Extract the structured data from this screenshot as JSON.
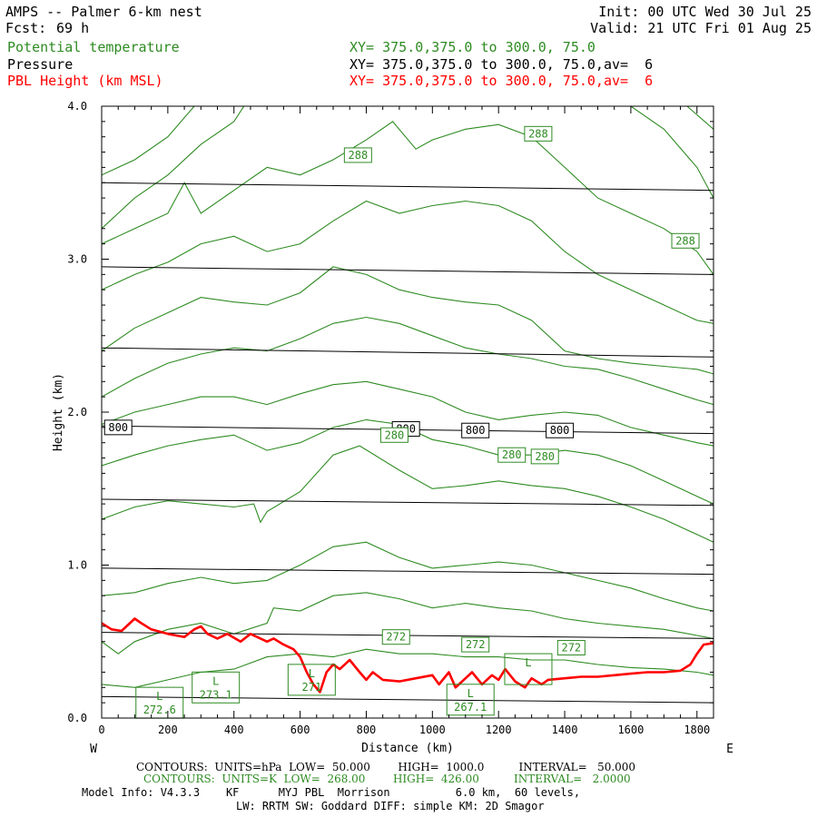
{
  "header": {
    "title": "AMPS -- Palmer 6-km nest",
    "fcst_label": "Fcst:",
    "fcst_value": "69 h",
    "init": "Init: 00 UTC Wed 30 Jul 25",
    "valid": "Valid: 21 UTC Fri 01 Aug 25",
    "fields": [
      {
        "name": "Potential temperature",
        "xy": "XY= 375.0,375.0 to 300.0, 75.0",
        "color": "#2e8b22"
      },
      {
        "name": "Pressure",
        "xy": "XY= 375.0,375.0 to 300.0, 75.0,av=  6",
        "color": "#000000"
      },
      {
        "name": "PBL Height (km MSL)",
        "xy": "XY= 375.0,375.0 to 300.0, 75.0,av=  6",
        "color": "#ff0000"
      }
    ]
  },
  "chart_data": {
    "type": "line",
    "xlabel": "Distance (km)",
    "ylabel": "Height (km)",
    "xlim": [
      0,
      1850
    ],
    "ylim": [
      0,
      4.0
    ],
    "x_ticks": [
      0,
      200,
      400,
      600,
      800,
      1000,
      1200,
      1400,
      1600,
      1800
    ],
    "y_ticks": [
      0.0,
      1.0,
      2.0,
      3.0,
      4.0
    ],
    "y_tick_labels": [
      "0.0",
      "1.0",
      "2.0",
      "3.0",
      "4.0"
    ],
    "left_end_label": "W",
    "right_end_label": "E",
    "grid": false,
    "pressure_isobars": {
      "color": "#000000",
      "lines": [
        {
          "x": [
            0,
            1850
          ],
          "y": [
            3.5,
            3.45
          ]
        },
        {
          "x": [
            0,
            1850
          ],
          "y": [
            2.95,
            2.9
          ]
        },
        {
          "x": [
            0,
            1850
          ],
          "y": [
            2.42,
            2.36
          ]
        },
        {
          "x": [
            0,
            1850
          ],
          "y": [
            1.91,
            1.86
          ]
        },
        {
          "x": [
            0,
            1850
          ],
          "y": [
            1.43,
            1.39
          ]
        },
        {
          "x": [
            0,
            1850
          ],
          "y": [
            0.98,
            0.94
          ]
        },
        {
          "x": [
            0,
            1850
          ],
          "y": [
            0.56,
            0.52
          ]
        },
        {
          "x": [
            0,
            1850
          ],
          "y": [
            0.14,
            0.1
          ]
        }
      ],
      "labels": [
        {
          "text": "800",
          "x": 50,
          "y": 1.9
        },
        {
          "text": "800",
          "x": 920,
          "y": 1.89
        },
        {
          "text": "800",
          "x": 1130,
          "y": 1.88
        },
        {
          "text": "800",
          "x": 1385,
          "y": 1.88
        }
      ]
    },
    "theta_contours": {
      "color": "#2e8b22",
      "lines": [
        {
          "x": [
            0,
            100,
            200,
            300,
            400,
            500,
            600,
            700,
            800,
            900,
            1000,
            1100,
            1200,
            1300,
            1400,
            1500,
            1600,
            1700,
            1800,
            1850
          ],
          "y": [
            0.22,
            0.2,
            0.25,
            0.3,
            0.32,
            0.4,
            0.42,
            0.4,
            0.45,
            0.42,
            0.42,
            0.4,
            0.4,
            0.38,
            0.38,
            0.35,
            0.33,
            0.32,
            0.3,
            0.28
          ]
        },
        {
          "x": [
            0,
            50,
            100,
            200,
            300,
            400,
            500,
            520,
            600,
            700,
            800,
            900,
            1000,
            1100,
            1200,
            1300,
            1400,
            1500,
            1600,
            1700,
            1800,
            1850
          ],
          "y": [
            0.5,
            0.42,
            0.5,
            0.58,
            0.62,
            0.55,
            0.62,
            0.72,
            0.7,
            0.8,
            0.82,
            0.78,
            0.72,
            0.75,
            0.72,
            0.7,
            0.65,
            0.62,
            0.6,
            0.58,
            0.54,
            0.52
          ]
        },
        {
          "x": [
            0,
            100,
            200,
            300,
            400,
            500,
            600,
            700,
            800,
            900,
            1000,
            1100,
            1200,
            1300,
            1400,
            1500,
            1600,
            1700,
            1800,
            1850
          ],
          "y": [
            0.8,
            0.82,
            0.88,
            0.92,
            0.88,
            0.9,
            1.0,
            1.12,
            1.15,
            1.05,
            0.98,
            1.0,
            1.02,
            1.0,
            0.95,
            0.9,
            0.85,
            0.78,
            0.72,
            0.7
          ]
        },
        {
          "x": [
            0,
            100,
            200,
            300,
            400,
            460,
            480,
            500,
            600,
            700,
            780,
            900,
            1000,
            1100,
            1200,
            1300,
            1400,
            1500,
            1600,
            1700,
            1800,
            1850
          ],
          "y": [
            1.3,
            1.38,
            1.42,
            1.4,
            1.38,
            1.4,
            1.28,
            1.35,
            1.48,
            1.72,
            1.78,
            1.62,
            1.5,
            1.52,
            1.55,
            1.52,
            1.5,
            1.45,
            1.38,
            1.3,
            1.2,
            1.15
          ]
        },
        {
          "x": [
            0,
            100,
            200,
            300,
            400,
            500,
            600,
            700,
            800,
            900,
            1000,
            1100,
            1200,
            1300,
            1400,
            1500,
            1600,
            1700,
            1800,
            1850
          ],
          "y": [
            1.65,
            1.72,
            1.78,
            1.82,
            1.85,
            1.75,
            1.8,
            1.9,
            1.95,
            1.92,
            1.82,
            1.78,
            1.72,
            1.72,
            1.75,
            1.72,
            1.65,
            1.55,
            1.45,
            1.4
          ]
        },
        {
          "x": [
            0,
            100,
            200,
            300,
            400,
            500,
            600,
            700,
            800,
            900,
            1000,
            1100,
            1200,
            1300,
            1400,
            1500,
            1600,
            1700,
            1800,
            1850
          ],
          "y": [
            1.92,
            2.0,
            2.05,
            2.1,
            2.1,
            2.05,
            2.12,
            2.18,
            2.2,
            2.15,
            2.1,
            2.0,
            1.95,
            1.98,
            2.0,
            1.98,
            1.9,
            1.85,
            1.8,
            1.78
          ]
        },
        {
          "x": [
            0,
            100,
            200,
            300,
            400,
            500,
            600,
            700,
            800,
            900,
            1000,
            1100,
            1200,
            1300,
            1400,
            1500,
            1600,
            1700,
            1800,
            1850
          ],
          "y": [
            2.1,
            2.22,
            2.32,
            2.38,
            2.42,
            2.4,
            2.48,
            2.58,
            2.62,
            2.58,
            2.5,
            2.42,
            2.38,
            2.35,
            2.3,
            2.28,
            2.22,
            2.15,
            2.08,
            2.05
          ]
        },
        {
          "x": [
            0,
            100,
            200,
            300,
            400,
            500,
            600,
            700,
            800,
            900,
            1000,
            1100,
            1200,
            1300,
            1400,
            1500,
            1600,
            1700,
            1800,
            1850
          ],
          "y": [
            2.4,
            2.55,
            2.65,
            2.75,
            2.72,
            2.7,
            2.78,
            2.95,
            2.9,
            2.8,
            2.75,
            2.72,
            2.7,
            2.6,
            2.4,
            2.35,
            2.32,
            2.3,
            2.28,
            2.25
          ]
        },
        {
          "x": [
            0,
            100,
            200,
            300,
            400,
            500,
            600,
            700,
            800,
            900,
            1000,
            1100,
            1200,
            1300,
            1400,
            1500,
            1600,
            1700,
            1800,
            1850
          ],
          "y": [
            2.8,
            2.9,
            2.98,
            3.1,
            3.15,
            3.05,
            3.1,
            3.25,
            3.38,
            3.3,
            3.35,
            3.38,
            3.35,
            3.25,
            3.05,
            2.9,
            2.8,
            2.7,
            2.6,
            2.58
          ]
        },
        {
          "x": [
            0,
            100,
            200,
            250,
            300,
            400,
            500,
            600,
            700,
            800,
            880,
            950,
            1000,
            1100,
            1200,
            1300,
            1400,
            1500,
            1600,
            1700,
            1800,
            1850
          ],
          "y": [
            3.1,
            3.2,
            3.3,
            3.5,
            3.3,
            3.45,
            3.6,
            3.55,
            3.65,
            3.78,
            3.9,
            3.72,
            3.78,
            3.85,
            3.88,
            3.8,
            3.6,
            3.4,
            3.3,
            3.2,
            3.05,
            2.9
          ]
        },
        {
          "x": [
            0,
            100,
            200,
            300,
            400,
            430
          ],
          "y": [
            3.2,
            3.4,
            3.55,
            3.75,
            3.9,
            4.0
          ]
        },
        {
          "x": [
            0,
            100,
            200,
            280
          ],
          "y": [
            3.55,
            3.65,
            3.8,
            4.0
          ]
        },
        {
          "x": [
            1600,
            1700,
            1800,
            1850
          ],
          "y": [
            4.0,
            3.85,
            3.6,
            3.4
          ]
        },
        {
          "x": [
            1770,
            1850
          ],
          "y": [
            4.0,
            3.85
          ]
        }
      ],
      "labels": [
        {
          "text": "288",
          "x": 775,
          "y": 3.68
        },
        {
          "text": "288",
          "x": 1320,
          "y": 3.82
        },
        {
          "text": "288",
          "x": 1765,
          "y": 3.12
        },
        {
          "text": "280",
          "x": 885,
          "y": 1.85
        },
        {
          "text": "280",
          "x": 1240,
          "y": 1.72
        },
        {
          "text": "280",
          "x": 1340,
          "y": 1.71
        },
        {
          "text": "272",
          "x": 890,
          "y": 0.53
        },
        {
          "text": "272",
          "x": 1130,
          "y": 0.48
        },
        {
          "text": "272",
          "x": 1420,
          "y": 0.46
        }
      ],
      "lows": [
        {
          "symbol": "L",
          "value": "272.6",
          "x": 175,
          "y": 0.1
        },
        {
          "symbol": "L",
          "value": "273.1",
          "x": 345,
          "y": 0.2
        },
        {
          "symbol": "L",
          "value": "271",
          "x": 635,
          "y": 0.25
        },
        {
          "symbol": "L",
          "value": "267.1",
          "x": 1115,
          "y": 0.12
        },
        {
          "symbol": "L",
          "value": "",
          "x": 1290,
          "y": 0.32
        }
      ]
    },
    "pbl_height": {
      "name": "PBL Height (km MSL)",
      "color": "#ff0000",
      "x": [
        0,
        30,
        60,
        100,
        120,
        150,
        200,
        250,
        280,
        300,
        320,
        350,
        380,
        420,
        450,
        500,
        520,
        550,
        580,
        600,
        620,
        640,
        660,
        680,
        700,
        720,
        750,
        780,
        800,
        820,
        850,
        900,
        950,
        1000,
        1020,
        1050,
        1070,
        1100,
        1120,
        1150,
        1180,
        1200,
        1220,
        1250,
        1280,
        1300,
        1330,
        1350,
        1400,
        1450,
        1500,
        1550,
        1600,
        1650,
        1700,
        1750,
        1780,
        1800,
        1820,
        1850
      ],
      "y": [
        0.62,
        0.58,
        0.57,
        0.65,
        0.62,
        0.58,
        0.55,
        0.53,
        0.58,
        0.6,
        0.55,
        0.52,
        0.55,
        0.5,
        0.55,
        0.5,
        0.52,
        0.48,
        0.45,
        0.4,
        0.3,
        0.22,
        0.17,
        0.3,
        0.35,
        0.32,
        0.38,
        0.3,
        0.25,
        0.3,
        0.25,
        0.24,
        0.26,
        0.28,
        0.22,
        0.3,
        0.2,
        0.26,
        0.3,
        0.22,
        0.28,
        0.25,
        0.32,
        0.24,
        0.2,
        0.26,
        0.22,
        0.25,
        0.26,
        0.27,
        0.27,
        0.28,
        0.29,
        0.3,
        0.3,
        0.31,
        0.35,
        0.42,
        0.48,
        0.49
      ]
    }
  },
  "footer": {
    "contours_black": "CONTOURS:  UNITS=hPa  LOW=  50.000        HIGH=  1000.0          INTERVAL=   50.000",
    "contours_green": "CONTOURS:  UNITS=K  LOW=  268.00        HIGH=  426.00          INTERVAL=   2.0000",
    "model_info": "Model Info: V4.3.3    KF      MYJ PBL  Morrison          6.0 km,  60 levels,",
    "physics": "LW: RRTM SW: Goddard DIFF: simple KM: 2D Smagor"
  }
}
